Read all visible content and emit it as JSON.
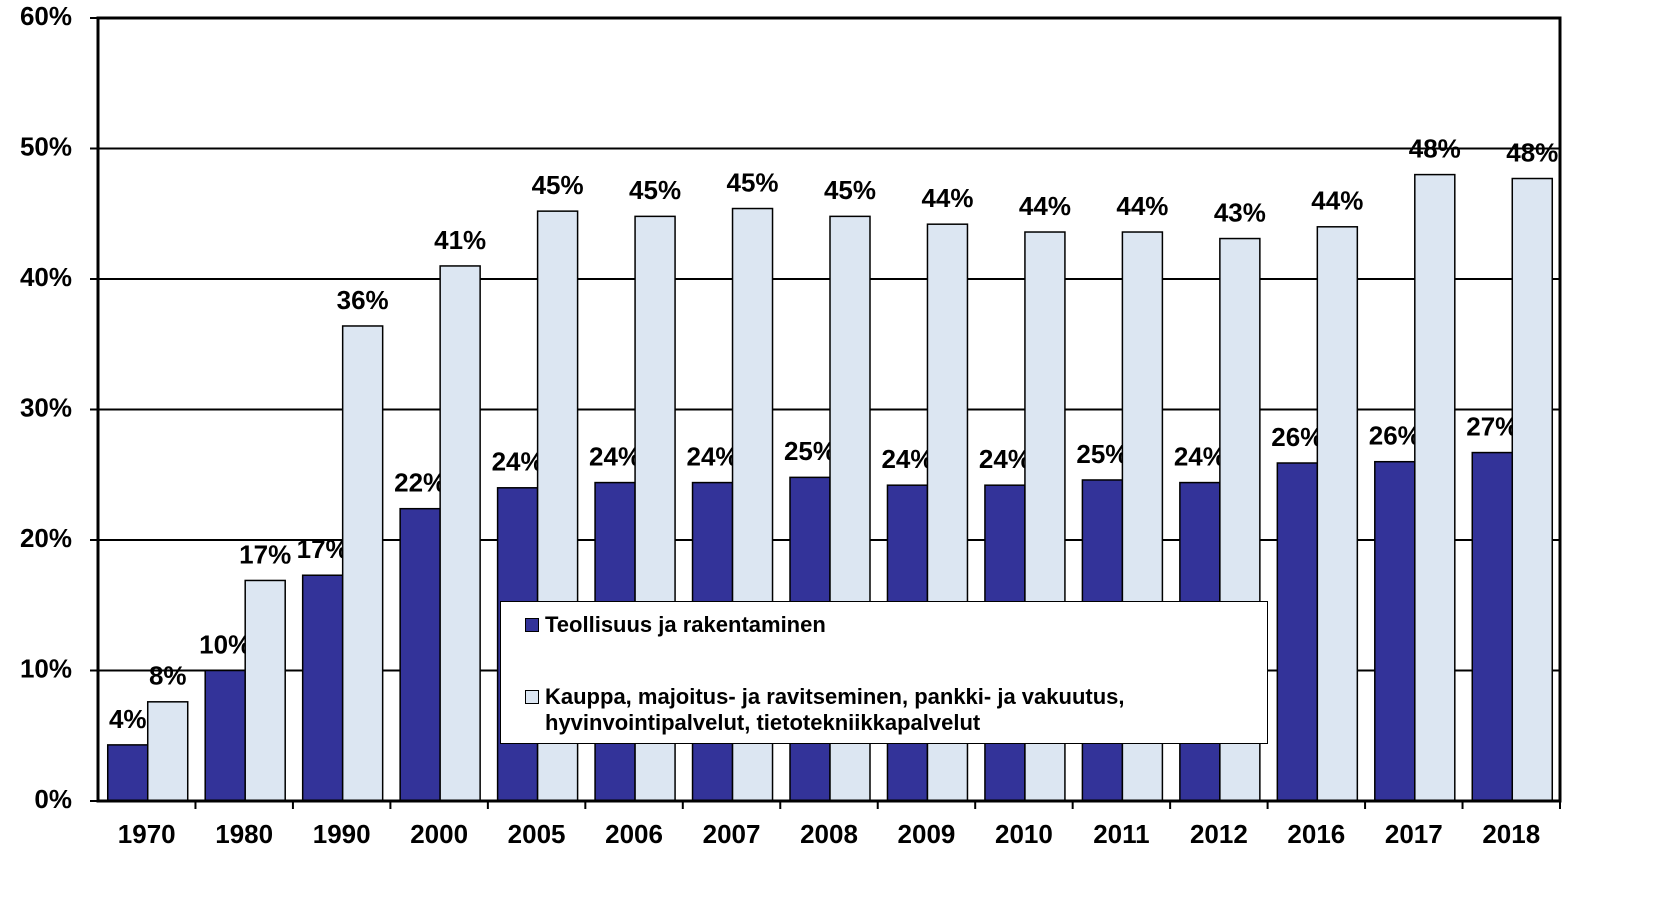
{
  "chart_data": {
    "type": "bar",
    "categories": [
      "1970",
      "1980",
      "1990",
      "2000",
      "2005",
      "2006",
      "2007",
      "2008",
      "2009",
      "2010",
      "2011",
      "2012",
      "2016",
      "2017",
      "2018"
    ],
    "series": [
      {
        "name": "Teollisuus ja rakentaminen",
        "color": "#333399",
        "values": [
          4.3,
          10,
          17.3,
          22.4,
          24.0,
          24.4,
          24.4,
          24.8,
          24.2,
          24.2,
          24.6,
          24.4,
          25.9,
          26.0,
          26.7
        ],
        "value_labels": [
          "4%",
          "10%",
          "17%",
          "22%",
          "24%",
          "24%",
          "24%",
          "25%",
          "24%",
          "24%",
          "25%",
          "24%",
          "26%",
          "26%",
          "27%"
        ]
      },
      {
        "name": "Kauppa, majoitus- ja ravitseminen, pankki- ja vakuutus, hyvinvointipalvelut, tietotekniikkapalvelut",
        "color": "#dce6f2",
        "values": [
          7.6,
          16.9,
          36.4,
          41.0,
          45.2,
          44.8,
          45.4,
          44.8,
          44.2,
          43.6,
          43.6,
          43.1,
          44.0,
          48.0,
          47.7
        ],
        "value_labels": [
          "8%",
          "17%",
          "36%",
          "41%",
          "45%",
          "45%",
          "45%",
          "45%",
          "44%",
          "44%",
          "44%",
          "43%",
          "44%",
          "48%",
          "48%"
        ]
      }
    ],
    "ylim": [
      0,
      60
    ],
    "yticks": [
      {
        "value": 0,
        "label": "0%"
      },
      {
        "value": 10,
        "label": "10%"
      },
      {
        "value": 20,
        "label": "20%"
      },
      {
        "value": 30,
        "label": "30%"
      },
      {
        "value": 40,
        "label": "40%"
      },
      {
        "value": 50,
        "label": "50%"
      },
      {
        "value": 60,
        "label": "60%"
      }
    ],
    "grid": true
  }
}
